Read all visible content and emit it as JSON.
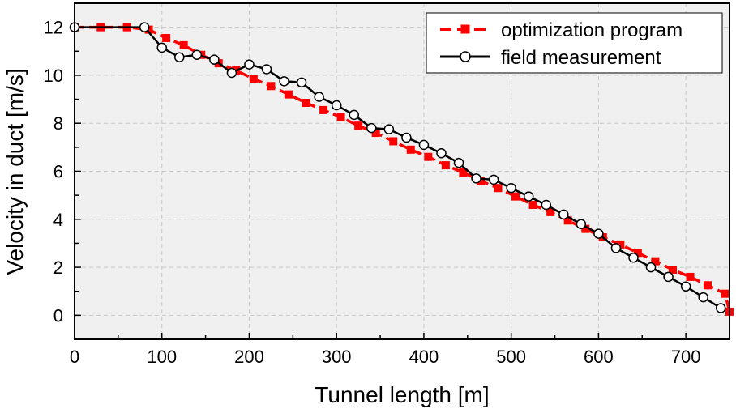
{
  "chart_data": {
    "type": "line",
    "xlabel": "Tunnel length [m]",
    "ylabel": "Velocity in duct [m/s]",
    "xlim": [
      0,
      750
    ],
    "ylim": [
      -1,
      13
    ],
    "x_ticks": [
      0,
      100,
      200,
      300,
      400,
      500,
      600,
      700
    ],
    "x_tick_labels": [
      "0",
      "100",
      "200",
      "300",
      "400",
      "500",
      "600",
      "700"
    ],
    "y_ticks": [
      0,
      2,
      4,
      6,
      8,
      10,
      12
    ],
    "y_tick_labels": [
      "0",
      "2",
      "4",
      "6",
      "8",
      "10",
      "12"
    ],
    "grid": true,
    "legend_position": "top-right",
    "series": [
      {
        "name": "optimization program",
        "color": "#ff0000",
        "line_style": "dashed",
        "marker": "square",
        "points": [
          [
            0,
            12.0
          ],
          [
            30,
            12.0
          ],
          [
            60,
            12.0
          ],
          [
            85,
            11.9
          ],
          [
            105,
            11.55
          ],
          [
            125,
            11.25
          ],
          [
            145,
            10.85
          ],
          [
            165,
            10.5
          ],
          [
            185,
            10.2
          ],
          [
            205,
            9.85
          ],
          [
            225,
            9.55
          ],
          [
            245,
            9.2
          ],
          [
            265,
            8.85
          ],
          [
            285,
            8.55
          ],
          [
            305,
            8.25
          ],
          [
            325,
            7.9
          ],
          [
            345,
            7.6
          ],
          [
            365,
            7.25
          ],
          [
            385,
            6.9
          ],
          [
            405,
            6.6
          ],
          [
            425,
            6.25
          ],
          [
            445,
            5.95
          ],
          [
            465,
            5.6
          ],
          [
            485,
            5.3
          ],
          [
            505,
            4.95
          ],
          [
            525,
            4.6
          ],
          [
            545,
            4.3
          ],
          [
            565,
            3.95
          ],
          [
            585,
            3.6
          ],
          [
            605,
            3.25
          ],
          [
            625,
            2.95
          ],
          [
            645,
            2.6
          ],
          [
            665,
            2.25
          ],
          [
            685,
            1.9
          ],
          [
            705,
            1.6
          ],
          [
            725,
            1.25
          ],
          [
            745,
            0.9
          ],
          [
            750,
            0.15
          ]
        ]
      },
      {
        "name": "field measurement",
        "color": "#000000",
        "line_style": "solid",
        "marker": "circle-open",
        "points": [
          [
            0,
            12.0
          ],
          [
            80,
            12.0
          ],
          [
            100,
            11.15
          ],
          [
            120,
            10.75
          ],
          [
            140,
            10.85
          ],
          [
            160,
            10.65
          ],
          [
            180,
            10.1
          ],
          [
            200,
            10.45
          ],
          [
            220,
            10.25
          ],
          [
            240,
            9.75
          ],
          [
            260,
            9.7
          ],
          [
            280,
            9.1
          ],
          [
            300,
            8.75
          ],
          [
            320,
            8.35
          ],
          [
            340,
            7.8
          ],
          [
            360,
            7.75
          ],
          [
            380,
            7.4
          ],
          [
            400,
            7.1
          ],
          [
            420,
            6.75
          ],
          [
            440,
            6.35
          ],
          [
            460,
            5.7
          ],
          [
            480,
            5.65
          ],
          [
            500,
            5.3
          ],
          [
            520,
            4.95
          ],
          [
            540,
            4.6
          ],
          [
            560,
            4.2
          ],
          [
            580,
            3.8
          ],
          [
            600,
            3.4
          ],
          [
            620,
            2.8
          ],
          [
            640,
            2.4
          ],
          [
            660,
            2.0
          ],
          [
            680,
            1.6
          ],
          [
            700,
            1.2
          ],
          [
            720,
            0.75
          ],
          [
            740,
            0.3
          ]
        ]
      }
    ]
  }
}
